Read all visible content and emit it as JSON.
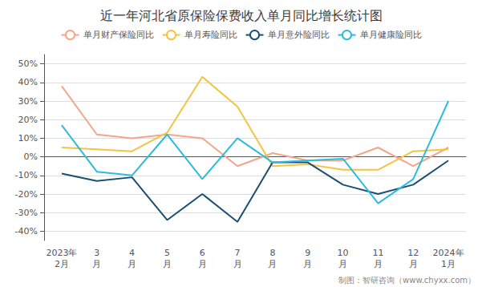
{
  "chart_data": {
    "type": "line",
    "title": "近一年河北省原保险保费收入单月同比增长统计图",
    "categories": [
      "2023年\n2月",
      "3\n月",
      "4\n月",
      "5\n月",
      "6\n月",
      "7\n月",
      "8\n月",
      "9\n月",
      "10\n月",
      "11\n月",
      "12\n月",
      "2024年\n1月"
    ],
    "series": [
      {
        "name": "单月财产保险同比",
        "color": "#F4A58A",
        "values": [
          38,
          12,
          10,
          12,
          10,
          -5,
          2,
          -2,
          -2,
          5,
          -5,
          5
        ]
      },
      {
        "name": "单月寿险同比",
        "color": "#F5C242",
        "values": [
          5,
          4,
          3,
          13,
          43,
          27,
          -5,
          -4,
          -7,
          -7,
          3,
          4
        ]
      },
      {
        "name": "单月意外险同比",
        "color": "#1B4F72",
        "values": [
          -9,
          -13,
          -11,
          -34,
          -20,
          -35,
          -3,
          -3,
          -15,
          -20,
          -15,
          -2
        ]
      },
      {
        "name": "单月健康险同比",
        "color": "#2BBCDE",
        "values": [
          17,
          -8,
          -10,
          12,
          -12,
          10,
          -3,
          -2,
          -1,
          -25,
          -12,
          30
        ]
      }
    ],
    "ylim": [
      -45,
      55
    ],
    "yticks": [
      {
        "value": -40,
        "label": "-40%"
      },
      {
        "value": -30,
        "label": "-30%"
      },
      {
        "value": -20,
        "label": "-20%"
      },
      {
        "value": -10,
        "label": "-10%"
      },
      {
        "value": 0,
        "label": "0%"
      },
      {
        "value": 10,
        "label": "10%"
      },
      {
        "value": 20,
        "label": "20%"
      },
      {
        "value": 30,
        "label": "30%"
      },
      {
        "value": 40,
        "label": "40%"
      },
      {
        "value": 50,
        "label": "50%"
      }
    ],
    "grid": true,
    "legend": "top",
    "annotations": [
      "制图：智研咨询（www.chyxx.com）"
    ]
  }
}
